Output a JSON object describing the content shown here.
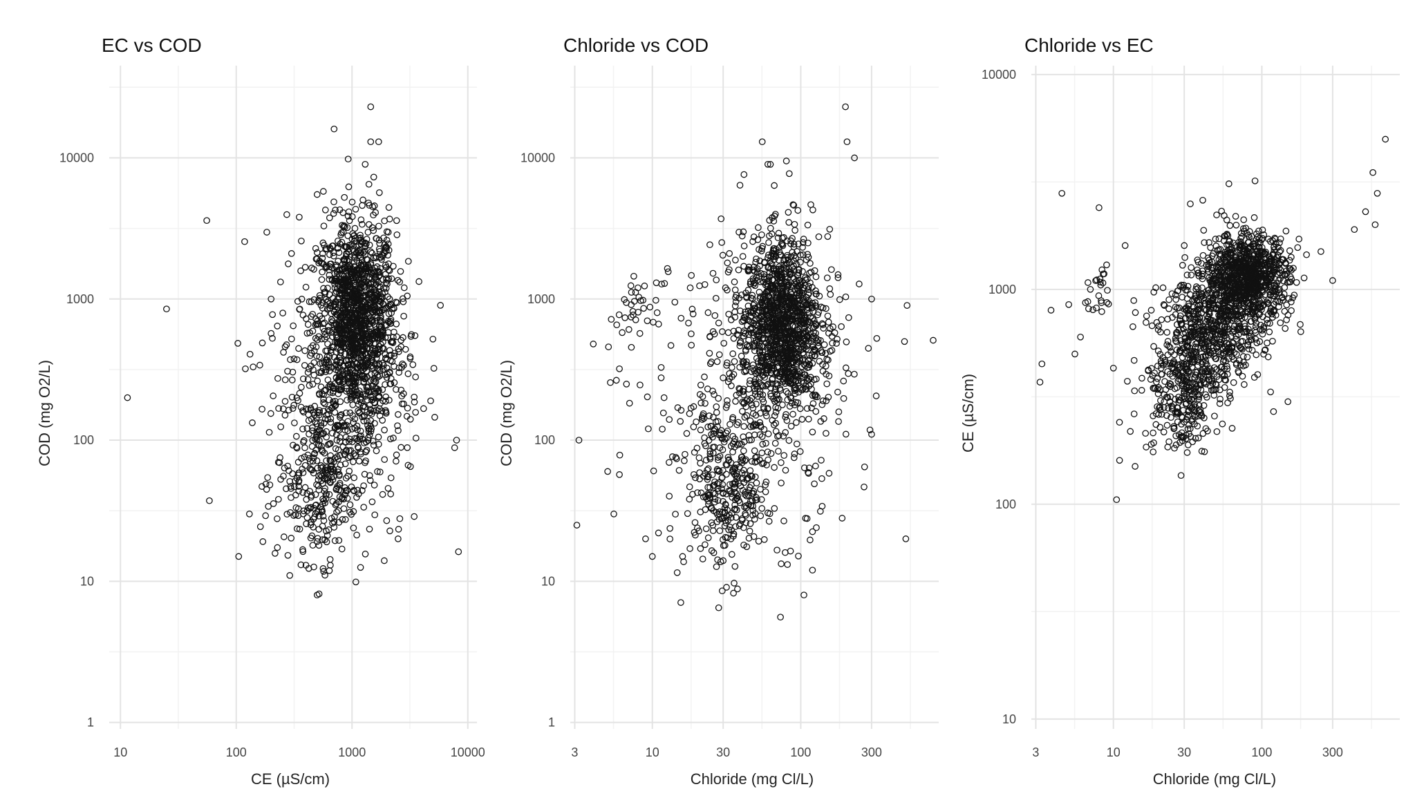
{
  "chart_data": [
    {
      "type": "scatter",
      "title": "EC vs COD",
      "xlabel": "CE (µS/cm)",
      "ylabel": "COD (mg O2/L)",
      "x_scale": "log10",
      "y_scale": "log10",
      "xlim": [
        8,
        12000
      ],
      "ylim": [
        0.9,
        45000
      ],
      "x_ticks": [
        10,
        100,
        1000,
        10000
      ],
      "x_tick_labels": [
        "10",
        "100",
        "1000",
        "10000"
      ],
      "y_ticks": [
        1,
        10,
        100,
        1000,
        10000
      ],
      "y_tick_labels": [
        "1",
        "10",
        "100",
        "1000",
        "10000"
      ],
      "grid": true,
      "legend": "none",
      "marker": "open-circle",
      "points": [
        [
          11.5,
          200
        ],
        [
          25,
          850
        ],
        [
          8000,
          100
        ],
        [
          5000,
          520
        ],
        [
          3500,
          550
        ],
        [
          700,
          16000
        ],
        [
          1450,
          23000
        ],
        [
          1450,
          13000
        ],
        [
          1700,
          13000
        ],
        [
          500,
          5500
        ],
        [
          350,
          3800
        ],
        [
          300,
          2100
        ],
        [
          200,
          1000
        ],
        [
          200,
          570
        ],
        [
          120,
          320
        ],
        [
          140,
          330
        ],
        [
          160,
          340
        ],
        [
          105,
          15
        ],
        [
          130,
          30
        ],
        [
          290,
          11
        ],
        [
          400,
          13
        ],
        [
          500,
          8
        ],
        [
          650,
          13
        ],
        [
          1900,
          14
        ],
        [
          2500,
          20
        ],
        [
          3200,
          65
        ],
        [
          3000,
          1050
        ],
        [
          2900,
          440
        ],
        [
          2000,
          3000
        ],
        [
          1200,
          1700
        ],
        [
          1300,
          2500
        ],
        [
          1500,
          3200
        ],
        [
          1400,
          6500
        ],
        [
          1300,
          9000
        ]
      ],
      "clusters": [
        {
          "center": [
            1100,
            700
          ],
          "spread": [
            0.17,
            0.35
          ],
          "count": 1300
        },
        {
          "center": [
            550,
            55
          ],
          "spread": [
            0.2,
            0.3
          ],
          "count": 320
        },
        {
          "center": [
            850,
            250
          ],
          "spread": [
            0.35,
            0.55
          ],
          "count": 300
        }
      ]
    },
    {
      "type": "scatter",
      "title": "Chloride vs COD",
      "xlabel": "Chloride (mg Cl/L)",
      "ylabel": "COD (mg O2/L)",
      "x_scale": "log10",
      "y_scale": "log10",
      "xlim": [
        2.8,
        850
      ],
      "ylim": [
        0.9,
        45000
      ],
      "x_ticks": [
        3,
        10,
        30,
        100,
        300
      ],
      "x_tick_labels": [
        "3",
        "10",
        "30",
        "100",
        "300"
      ],
      "y_ticks": [
        1,
        10,
        100,
        1000,
        10000
      ],
      "y_tick_labels": [
        "1",
        "10",
        "100",
        "1000",
        "10000"
      ],
      "grid": true,
      "legend": "none",
      "marker": "open-circle",
      "points": [
        [
          3.2,
          100
        ],
        [
          3.1,
          25
        ],
        [
          4,
          480
        ],
        [
          5,
          60
        ],
        [
          5.5,
          30
        ],
        [
          6,
          57
        ],
        [
          6,
          320
        ],
        [
          7.5,
          1450
        ],
        [
          8,
          1200
        ],
        [
          9,
          20
        ],
        [
          10,
          15
        ],
        [
          11,
          22
        ],
        [
          12,
          200
        ],
        [
          13,
          140
        ],
        [
          16,
          15
        ],
        [
          18,
          1200
        ],
        [
          200,
          23000
        ],
        [
          205,
          13000
        ],
        [
          230,
          10000
        ],
        [
          300,
          1000
        ],
        [
          500,
          500
        ],
        [
          520,
          900
        ],
        [
          510,
          20
        ],
        [
          780,
          510
        ],
        [
          300,
          110
        ],
        [
          120,
          12
        ],
        [
          105,
          8
        ],
        [
          190,
          28
        ],
        [
          60,
          9000
        ],
        [
          55,
          13000
        ],
        [
          80,
          9500
        ]
      ],
      "clusters": [
        {
          "center": [
            75,
            650
          ],
          "spread": [
            0.13,
            0.3
          ],
          "count": 1150
        },
        {
          "center": [
            32,
            45
          ],
          "spread": [
            0.14,
            0.3
          ],
          "count": 320
        },
        {
          "center": [
            55,
            280
          ],
          "spread": [
            0.3,
            0.55
          ],
          "count": 350
        },
        {
          "center": [
            8,
            850
          ],
          "spread": [
            0.07,
            0.1
          ],
          "count": 25
        },
        {
          "center": [
            8,
            300
          ],
          "spread": [
            0.15,
            0.3
          ],
          "count": 20
        }
      ]
    },
    {
      "type": "scatter",
      "title": "Chloride vs EC",
      "xlabel": "Chloride (mg Cl/L)",
      "ylabel": "CE (µS/cm)",
      "x_scale": "log10",
      "y_scale": "log10",
      "xlim": [
        2.8,
        850
      ],
      "ylim": [
        9,
        11000
      ],
      "x_ticks": [
        3,
        10,
        30,
        100,
        300
      ],
      "x_tick_labels": [
        "3",
        "10",
        "30",
        "100",
        "300"
      ],
      "y_ticks": [
        10,
        100,
        1000,
        10000
      ],
      "y_tick_labels": [
        "10",
        "100",
        "1000",
        "10000"
      ],
      "grid": true,
      "legend": "none",
      "marker": "open-circle",
      "points": [
        [
          3.2,
          370
        ],
        [
          3.3,
          450
        ],
        [
          3.8,
          800
        ],
        [
          4.5,
          2800
        ],
        [
          5,
          850
        ],
        [
          5.5,
          500
        ],
        [
          6,
          600
        ],
        [
          7,
          1000
        ],
        [
          8,
          2400
        ],
        [
          9,
          1300
        ],
        [
          10,
          430
        ],
        [
          10.5,
          105
        ],
        [
          11,
          160
        ],
        [
          12,
          1600
        ],
        [
          14,
          150
        ],
        [
          18,
          800
        ],
        [
          680,
          5000
        ],
        [
          560,
          3500
        ],
        [
          600,
          2800
        ],
        [
          580,
          2000
        ],
        [
          500,
          2300
        ],
        [
          420,
          1900
        ],
        [
          300,
          1100
        ],
        [
          250,
          1500
        ],
        [
          200,
          1450
        ],
        [
          120,
          270
        ],
        [
          150,
          300
        ],
        [
          90,
          3200
        ],
        [
          60,
          3100
        ],
        [
          40,
          2600
        ],
        [
          33,
          2500
        ],
        [
          30,
          1600
        ],
        [
          25,
          450
        ],
        [
          22,
          300
        ],
        [
          18,
          190
        ]
      ],
      "clusters": [
        {
          "center": [
            80,
            1150
          ],
          "spread": [
            0.14,
            0.1
          ],
          "count": 900
        },
        {
          "center": [
            45,
            620
          ],
          "spread": [
            0.17,
            0.13
          ],
          "count": 600
        },
        {
          "center": [
            28,
            320
          ],
          "spread": [
            0.13,
            0.13
          ],
          "count": 260
        },
        {
          "center": [
            8,
            1000
          ],
          "spread": [
            0.05,
            0.06
          ],
          "count": 22
        }
      ]
    }
  ]
}
